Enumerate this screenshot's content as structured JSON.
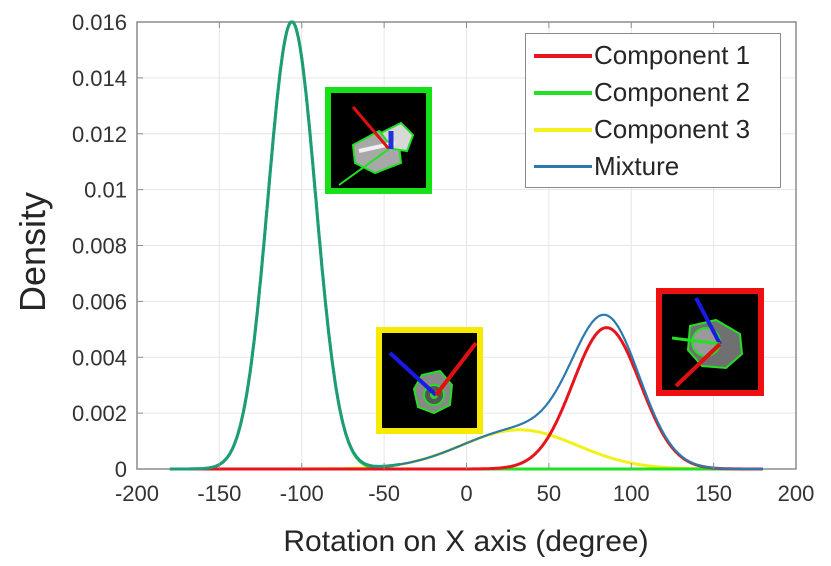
{
  "chart_data": {
    "type": "line",
    "title": "",
    "xlabel": "Rotation on X axis (degree)",
    "ylabel": "Density",
    "xlim": [
      -200,
      200
    ],
    "ylim": [
      0,
      0.016
    ],
    "xticks": [
      -200,
      -150,
      -100,
      -50,
      0,
      50,
      100,
      150,
      200
    ],
    "xtick_labels": [
      "-200",
      "-150",
      "-100",
      "-50",
      "0",
      "50",
      "100",
      "150",
      "200"
    ],
    "yticks": [
      0,
      0.002,
      0.004,
      0.006,
      0.008,
      0.01,
      0.012,
      0.014,
      0.016
    ],
    "ytick_labels": [
      "0",
      "0.002",
      "0.004",
      "0.006",
      "0.008",
      "0.01",
      "0.012",
      "0.014",
      "0.016"
    ],
    "grid": true,
    "legend_position": "upper right",
    "x_range_plotted": [
      -180,
      180
    ],
    "series": [
      {
        "name": "Component 1",
        "color": "#e8141c",
        "kind": "gaussian",
        "weight": 0.26,
        "mean": 85,
        "sd": 20.5,
        "peak_density": 0.00505
      },
      {
        "name": "Component 2",
        "color": "#22e022",
        "kind": "gaussian",
        "weight": 0.582,
        "mean": -106,
        "sd": 14.5,
        "peak_density": 0.016
      },
      {
        "name": "Component 3",
        "color": "#f2f21a",
        "kind": "gaussian",
        "weight": 0.123,
        "mean": 32,
        "sd": 35,
        "peak_density": 0.0014
      },
      {
        "name": "Mixture",
        "color": "#2a7ab0",
        "kind": "sum",
        "peak_density_left": 0.016,
        "peak_x_left": -106,
        "peak_density_right": 0.0055,
        "peak_x_right": 82
      }
    ],
    "annotations": [
      {
        "type": "image-inset",
        "border_color": "#16e016",
        "description": "pose render for Component 2",
        "near_x": -70,
        "near_y": 0.012
      },
      {
        "type": "image-inset",
        "border_color": "#f5ea00",
        "description": "pose render for Component 3",
        "near_x": -20,
        "near_y": 0.0035
      },
      {
        "type": "image-inset",
        "border_color": "#ee1010",
        "description": "pose render for Component 1",
        "near_x": 150,
        "near_y": 0.0045
      }
    ]
  },
  "legend": {
    "items": [
      {
        "label": "Component 1",
        "color": "#e8141c"
      },
      {
        "label": "Component 2",
        "color": "#22e022"
      },
      {
        "label": "Component 3",
        "color": "#f2f21a"
      },
      {
        "label": "Mixture",
        "color": "#2a7ab0"
      }
    ]
  }
}
